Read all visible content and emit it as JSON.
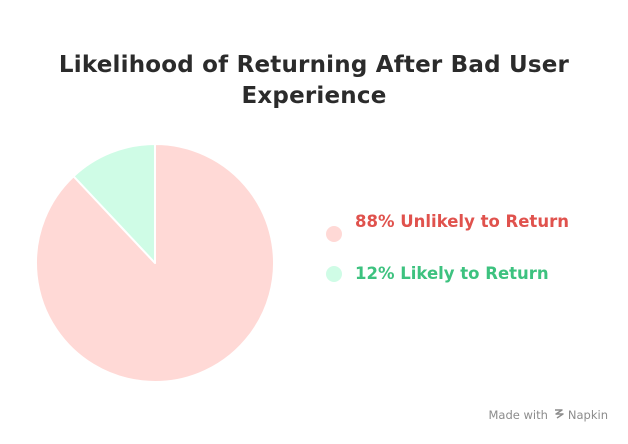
{
  "chart_data": {
    "type": "pie",
    "title": "Likelihood of Returning After Bad User Experience",
    "slices": [
      {
        "label": "88% Unlikely to Return",
        "value": 88,
        "color": "#ffd9d6",
        "text_color": "#e0524d"
      },
      {
        "label": "12% Likely to Return",
        "value": 12,
        "color": "#cffce6",
        "text_color": "#3dc27f"
      }
    ],
    "start": "12 o'clock",
    "direction": "counter-clockwise",
    "legend_position": "right"
  },
  "legend": {
    "items": [
      {
        "label": "88% Unlikely to Return"
      },
      {
        "label": "12% Likely to Return"
      }
    ]
  },
  "watermark": {
    "prefix": "Made with",
    "brand": "Napkin"
  }
}
